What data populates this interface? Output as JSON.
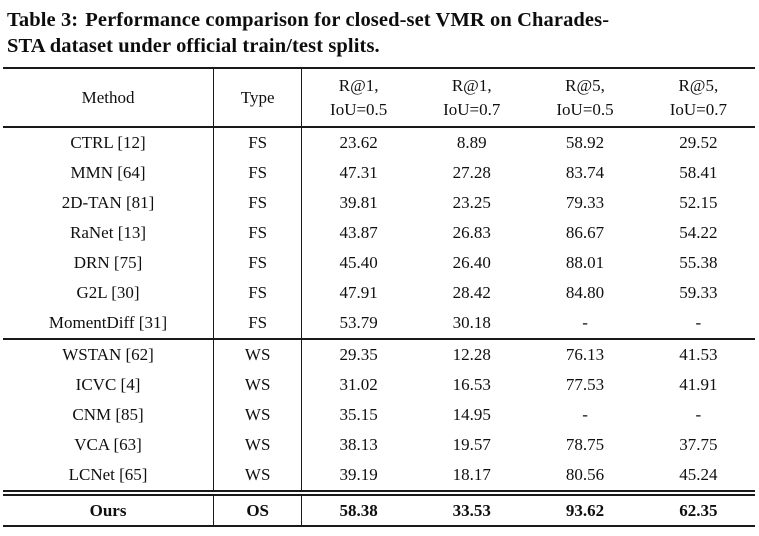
{
  "caption": {
    "label": "Table 3:",
    "line1_rest": "Performance comparison for closed-set VMR on Charades-",
    "line2": "STA dataset under official train/test splits."
  },
  "table": {
    "headers": {
      "method": "Method",
      "type": "Type",
      "metrics": [
        {
          "line1": "R@1,",
          "line2": "IoU=0.5"
        },
        {
          "line1": "R@1,",
          "line2": "IoU=0.7"
        },
        {
          "line1": "R@5,",
          "line2": "IoU=0.5"
        },
        {
          "line1": "R@5,",
          "line2": "IoU=0.7"
        }
      ]
    },
    "rows": [
      {
        "method": "CTRL [12]",
        "type": "FS",
        "values": [
          "23.62",
          "8.89",
          "58.92",
          "29.52"
        ]
      },
      {
        "method": "MMN [64]",
        "type": "FS",
        "values": [
          "47.31",
          "27.28",
          "83.74",
          "58.41"
        ]
      },
      {
        "method": "2D-TAN [81]",
        "type": "FS",
        "values": [
          "39.81",
          "23.25",
          "79.33",
          "52.15"
        ]
      },
      {
        "method": "RaNet [13]",
        "type": "FS",
        "values": [
          "43.87",
          "26.83",
          "86.67",
          "54.22"
        ]
      },
      {
        "method": "DRN [75]",
        "type": "FS",
        "values": [
          "45.40",
          "26.40",
          "88.01",
          "55.38"
        ]
      },
      {
        "method": "G2L [30]",
        "type": "FS",
        "values": [
          "47.91",
          "28.42",
          "84.80",
          "59.33"
        ]
      },
      {
        "method": "MomentDiff [31]",
        "type": "FS",
        "values": [
          "53.79",
          "30.18",
          "-",
          "-"
        ]
      },
      {
        "method": "WSTAN [62]",
        "type": "WS",
        "values": [
          "29.35",
          "12.28",
          "76.13",
          "41.53"
        ]
      },
      {
        "method": "ICVC [4]",
        "type": "WS",
        "values": [
          "31.02",
          "16.53",
          "77.53",
          "41.91"
        ]
      },
      {
        "method": "CNM [85]",
        "type": "WS",
        "values": [
          "35.15",
          "14.95",
          "-",
          "-"
        ]
      },
      {
        "method": "VCA [63]",
        "type": "WS",
        "values": [
          "38.13",
          "19.57",
          "78.75",
          "37.75"
        ]
      },
      {
        "method": "LCNet [65]",
        "type": "WS",
        "values": [
          "39.19",
          "18.17",
          "80.56",
          "45.24"
        ]
      },
      {
        "method": "Ours",
        "type": "OS",
        "values": [
          "58.38",
          "33.53",
          "93.62",
          "62.35"
        ]
      }
    ],
    "colors": {
      "text": "#0f0f0f",
      "rule": "#191919",
      "background": "#ffffff"
    }
  }
}
